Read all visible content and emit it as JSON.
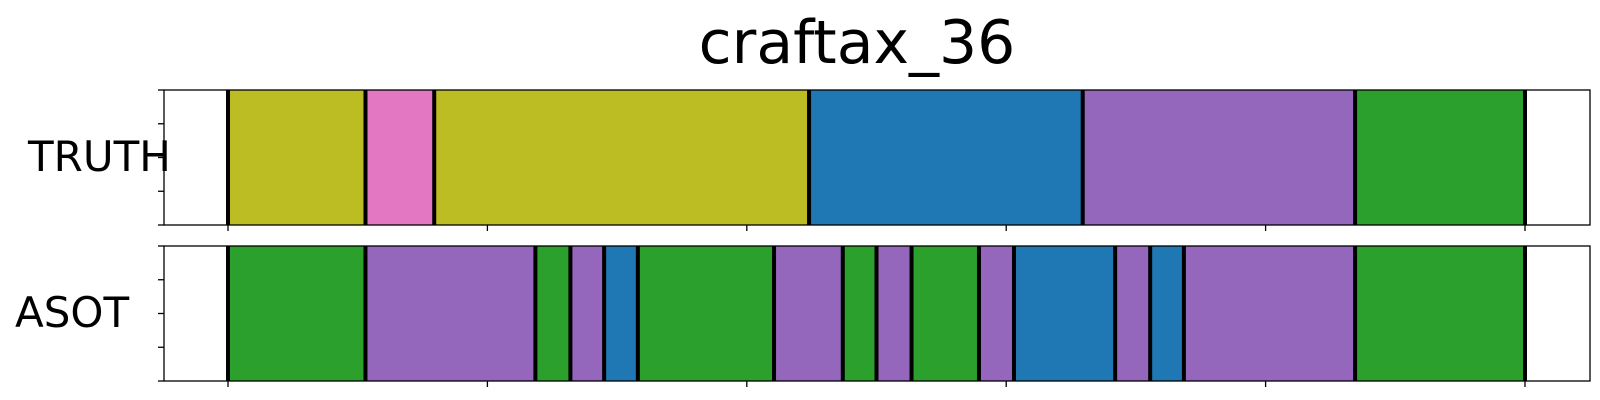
{
  "chart_data": {
    "type": "segmentation",
    "title": "craftax_36",
    "x_range": [
      0,
      1
    ],
    "colors": {
      "olive": "#bcbd22",
      "pink": "#e377c2",
      "blue": "#1f77b4",
      "purple": "#9467bd",
      "green": "#2ca02c"
    },
    "rows": [
      {
        "label": "TRUTH",
        "segments": [
          {
            "start": 0.0,
            "end": 0.106,
            "color": "olive"
          },
          {
            "start": 0.106,
            "end": 0.159,
            "color": "pink"
          },
          {
            "start": 0.159,
            "end": 0.448,
            "color": "olive"
          },
          {
            "start": 0.448,
            "end": 0.659,
            "color": "blue"
          },
          {
            "start": 0.659,
            "end": 0.869,
            "color": "purple"
          },
          {
            "start": 0.869,
            "end": 1.0,
            "color": "green"
          }
        ]
      },
      {
        "label": "ASOT",
        "segments": [
          {
            "start": 0.0,
            "end": 0.106,
            "color": "green"
          },
          {
            "start": 0.106,
            "end": 0.237,
            "color": "purple"
          },
          {
            "start": 0.237,
            "end": 0.264,
            "color": "green"
          },
          {
            "start": 0.264,
            "end": 0.29,
            "color": "purple"
          },
          {
            "start": 0.29,
            "end": 0.316,
            "color": "blue"
          },
          {
            "start": 0.316,
            "end": 0.421,
            "color": "green"
          },
          {
            "start": 0.421,
            "end": 0.474,
            "color": "purple"
          },
          {
            "start": 0.474,
            "end": 0.5,
            "color": "green"
          },
          {
            "start": 0.5,
            "end": 0.527,
            "color": "purple"
          },
          {
            "start": 0.527,
            "end": 0.579,
            "color": "green"
          },
          {
            "start": 0.579,
            "end": 0.606,
            "color": "purple"
          },
          {
            "start": 0.606,
            "end": 0.684,
            "color": "blue"
          },
          {
            "start": 0.684,
            "end": 0.711,
            "color": "purple"
          },
          {
            "start": 0.711,
            "end": 0.737,
            "color": "blue"
          },
          {
            "start": 0.737,
            "end": 0.869,
            "color": "purple"
          },
          {
            "start": 0.869,
            "end": 1.0,
            "color": "green"
          }
        ]
      }
    ]
  }
}
